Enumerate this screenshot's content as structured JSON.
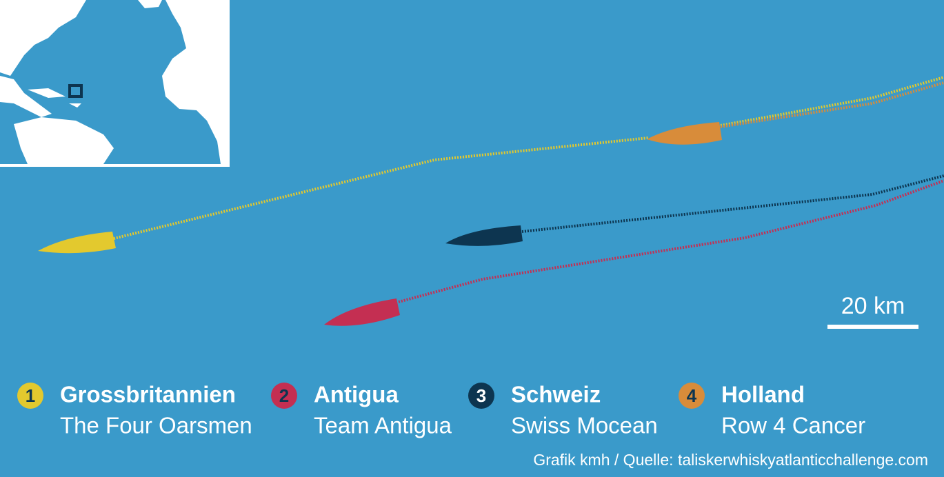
{
  "scale_label": "20 km",
  "legend": [
    {
      "rank": "1",
      "country": "Grossbritannien",
      "team": "The Four Oarsmen",
      "color": "#e3c92e"
    },
    {
      "rank": "2",
      "country": "Antigua",
      "team": "Team Antigua",
      "color": "#c42f52"
    },
    {
      "rank": "3",
      "country": "Schweiz",
      "team": "Swiss Mocean",
      "color": "#0d3550"
    },
    {
      "rank": "4",
      "country": "Holland",
      "team": "Row 4 Cancer",
      "color": "#d88c3a"
    }
  ],
  "source": "Grafik kmh / Quelle: taliskerwhiskyatlanticchallenge.com"
}
